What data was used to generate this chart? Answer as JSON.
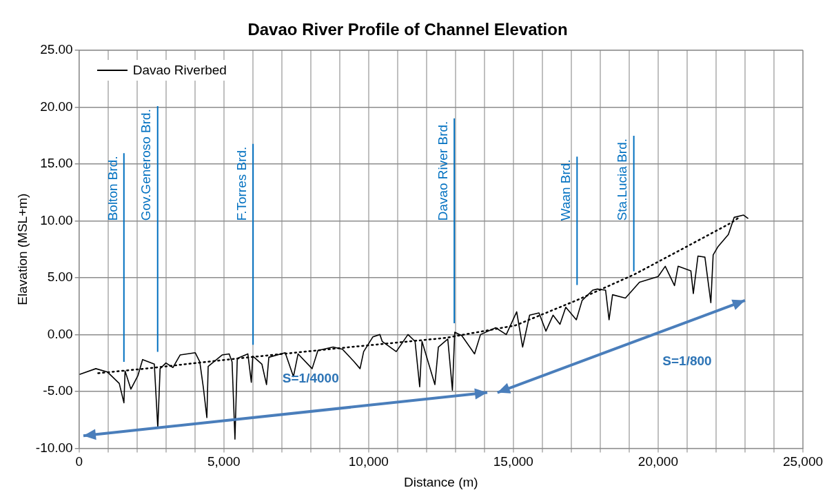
{
  "chart_data": {
    "type": "line",
    "title": "Davao River Profile of Channel Elevation",
    "xlabel": "Distance (m)",
    "ylabel": "Elavation (MSL+m)",
    "xlim": [
      0,
      25000
    ],
    "xticks": [
      0,
      {
        "value": 1000,
        "label": null
      },
      {
        "value": 2000,
        "label": null
      },
      {
        "value": 3000,
        "label": null
      },
      {
        "value": 4000,
        "label": null
      },
      {
        "value": 5000,
        "label": "5,000"
      },
      {
        "value": 6000,
        "label": null
      },
      {
        "value": 7000,
        "label": null
      },
      {
        "value": 8000,
        "label": null
      },
      {
        "value": 9000,
        "label": null
      },
      {
        "value": 10000,
        "label": "10,000"
      },
      {
        "value": 11000,
        "label": null
      },
      {
        "value": 12000,
        "label": null
      },
      {
        "value": 13000,
        "label": null
      },
      {
        "value": 14000,
        "label": null
      },
      {
        "value": 15000,
        "label": "15,000"
      },
      {
        "value": 16000,
        "label": null
      },
      {
        "value": 17000,
        "label": null
      },
      {
        "value": 18000,
        "label": null
      },
      {
        "value": 19000,
        "label": null
      },
      {
        "value": 20000,
        "label": "20,000"
      },
      {
        "value": 21000,
        "label": null
      },
      {
        "value": 22000,
        "label": null
      },
      {
        "value": 23000,
        "label": null
      },
      {
        "value": 24000,
        "label": null
      },
      {
        "value": 25000,
        "label": "25,000"
      }
    ],
    "ylim": [
      -10,
      25
    ],
    "yticks": [
      {
        "value": -10,
        "label": "-10.00"
      },
      {
        "value": -5,
        "label": "-5.00"
      },
      {
        "value": 0,
        "label": "0.00"
      },
      {
        "value": 5,
        "label": "5.00"
      },
      {
        "value": 10,
        "label": "10.00"
      },
      {
        "value": 15,
        "label": "15.00"
      },
      {
        "value": 20,
        "label": "20.00"
      },
      {
        "value": 25,
        "label": "25.00"
      }
    ],
    "grid": true,
    "legend": "top left",
    "marker": "none",
    "series": [
      {
        "name": "Davao Riverbed",
        "color": "#000000",
        "line_style": "solid",
        "x": [
          17,
          580,
          985,
          1390,
          1550,
          1590,
          1790,
          2035,
          2195,
          2600,
          2720,
          2800,
          3000,
          3245,
          3490,
          4015,
          4170,
          4295,
          4415,
          4460,
          4940,
          5185,
          5285,
          5385,
          5465,
          5830,
          5950,
          6000,
          6315,
          6475,
          6555,
          7120,
          7405,
          7565,
          8050,
          8250,
          8775,
          9100,
          9505,
          9705,
          9830,
          10150,
          10390,
          10470,
          10955,
          11360,
          11605,
          11765,
          11845,
          12290,
          12410,
          12735,
          12895,
          12975,
          13220,
          13660,
          13865,
          14390,
          14755,
          15115,
          15320,
          15560,
          15885,
          16125,
          16370,
          16610,
          16810,
          17175,
          17375,
          17740,
          17900,
          18185,
          18305,
          18425,
          18870,
          19355,
          20000,
          20245,
          20565,
          20690,
          21130,
          21215,
          21375,
          21615,
          21820,
          21900,
          22060,
          22425,
          22625,
          22950,
          23110
        ],
        "values": [
          -3.5,
          -3.0,
          -3.3,
          -4.3,
          -6.0,
          -3.2,
          -4.8,
          -3.6,
          -2.2,
          -2.6,
          -8.2,
          -3.0,
          -2.5,
          -2.9,
          -1.8,
          -1.6,
          -2.4,
          -4.7,
          -7.3,
          -2.8,
          -1.8,
          -1.7,
          -2.4,
          -9.2,
          -2.1,
          -1.7,
          -4.2,
          -1.9,
          -2.6,
          -4.4,
          -2.0,
          -1.6,
          -3.7,
          -1.7,
          -3.0,
          -1.4,
          -1.1,
          -1.3,
          -2.4,
          -3.0,
          -1.5,
          -0.2,
          0.0,
          -0.6,
          -1.5,
          0.0,
          -0.6,
          -4.6,
          -0.6,
          -4.4,
          -1.1,
          -0.4,
          -4.9,
          0.2,
          -0.1,
          -1.7,
          0.0,
          0.6,
          0.0,
          2.0,
          -1.1,
          1.7,
          1.9,
          0.3,
          1.7,
          0.9,
          2.4,
          1.3,
          3.0,
          3.9,
          4.0,
          3.9,
          1.3,
          3.5,
          3.2,
          4.6,
          5.1,
          6.0,
          4.3,
          6.0,
          5.6,
          3.6,
          6.9,
          6.8,
          2.8,
          7.0,
          7.7,
          8.8,
          10.3,
          10.5,
          10.2
        ]
      },
      {
        "type": "line",
        "color": "#000000",
        "line_style": "dotted",
        "x": [
          660,
          2280,
          5500,
          9375,
          12650,
          15070,
          17175,
          19190,
          20890,
          22505,
          22800
        ],
        "values": [
          -3.4,
          -3.0,
          -2.1,
          -1.1,
          -0.3,
          0.8,
          3.0,
          5.3,
          7.6,
          9.8,
          10.3
        ]
      }
    ],
    "ref_lines": [
      {
        "axis": "x",
        "value": 1550,
        "label": "Bolton Brd.",
        "color": "#0070c0"
      },
      {
        "axis": "x",
        "value": 2715,
        "label": "Gov.Generoso Brd.",
        "color": "#0070c0"
      },
      {
        "axis": "x",
        "value": 6010,
        "label": "F.Torres Brd.",
        "color": "#0070c0"
      },
      {
        "axis": "x",
        "value": 12960,
        "label": "Davao River Brd.",
        "color": "#0070c0"
      },
      {
        "axis": "x",
        "value": 17200,
        "label": "Waan Brd.",
        "color": "#0070c0"
      },
      {
        "axis": "x",
        "value": 19160,
        "label": "Sta.Lucia Brd.",
        "color": "#0070c0"
      }
    ],
    "annotations": [
      "S=1/4000",
      "S=1/800"
    ]
  }
}
